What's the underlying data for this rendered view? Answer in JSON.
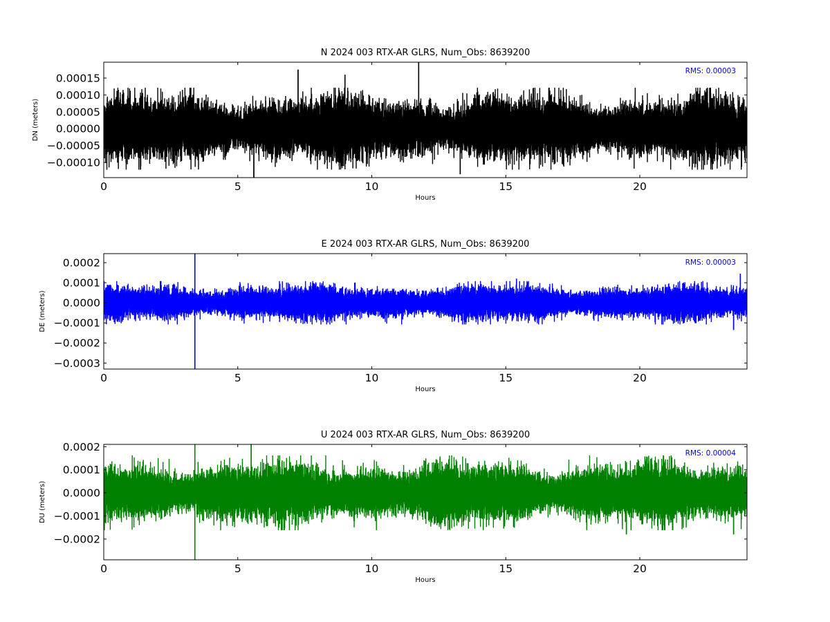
{
  "chart_data": [
    {
      "type": "line",
      "title": "N 2024 003 RTX-AR  GLRS, Num_Obs: 8639200",
      "xlabel": "Hours",
      "ylabel": "DN (meters)",
      "xlim": [
        0,
        24
      ],
      "ylim": [
        -0.000145,
        0.000197
      ],
      "x_ticks": [
        0,
        5,
        10,
        15,
        20
      ],
      "x_tick_labels": [
        "0",
        "5",
        "10",
        "15",
        "20"
      ],
      "y_ticks": [
        -0.0001,
        -5e-05,
        0,
        5e-05,
        0.0001,
        0.00015
      ],
      "y_tick_labels": [
        "−0.00010",
        "−0.00005",
        "0.00000",
        "0.00005",
        "0.00010",
        "0.00015"
      ],
      "rms_text": "RMS:  0.00003",
      "rms_color": "#0000ff",
      "grid": false,
      "series": [
        {
          "color": "#000000",
          "sample_every_hours": 0.0008,
          "typical_range": [
            -9e-05,
            9e-05
          ],
          "notable_spikes": [
            {
              "x": 7.25,
              "y": 0.000175
            },
            {
              "x": 11.75,
              "y": 0.000197
            },
            {
              "x": 5.6,
              "y": -0.000145
            },
            {
              "x": 9.0,
              "y": 0.00016
            },
            {
              "x": 13.3,
              "y": -0.000135
            }
          ]
        }
      ]
    },
    {
      "type": "line",
      "title": "E 2024 003 RTX-AR  GLRS, Num_Obs: 8639200",
      "xlabel": "Hours",
      "ylabel": "DE (meters)",
      "xlim": [
        0,
        24
      ],
      "ylim": [
        -0.00033,
        0.000245
      ],
      "x_ticks": [
        0,
        5,
        10,
        15,
        20
      ],
      "x_tick_labels": [
        "0",
        "5",
        "10",
        "15",
        "20"
      ],
      "y_ticks": [
        -0.0003,
        -0.0002,
        -0.0001,
        0,
        0.0001,
        0.0002
      ],
      "y_tick_labels": [
        "−0.0003",
        "−0.0002",
        "−0.0001",
        "0.0000",
        "0.0001",
        "0.0002"
      ],
      "rms_text": "RMS:  0.00003",
      "rms_color": "#0000ff",
      "grid": false,
      "series": [
        {
          "color": "#0000ff",
          "sample_every_hours": 0.0008,
          "typical_range": [
            -8e-05,
            8e-05
          ],
          "notable_spikes": [
            {
              "x": 3.4,
              "y": 0.000245
            },
            {
              "x": 3.4,
              "y": -0.00033
            },
            {
              "x": 23.75,
              "y": 0.000145
            },
            {
              "x": 23.5,
              "y": -0.000135
            },
            {
              "x": 15.4,
              "y": 0.00012
            }
          ]
        }
      ]
    },
    {
      "type": "line",
      "title": "U 2024 003 RTX-AR  GLRS, Num_Obs: 8639200",
      "xlabel": "Hours",
      "ylabel": "DU (meters)",
      "xlim": [
        0,
        24
      ],
      "ylim": [
        -0.00029,
        0.00021
      ],
      "x_ticks": [
        0,
        5,
        10,
        15,
        20
      ],
      "x_tick_labels": [
        "0",
        "5",
        "10",
        "15",
        "20"
      ],
      "y_ticks": [
        -0.0002,
        -0.0001,
        0,
        0.0001,
        0.0002
      ],
      "y_tick_labels": [
        "−0.0002",
        "−0.0001",
        "0.0000",
        "0.0001",
        "0.0002"
      ],
      "rms_text": "RMS:  0.00004",
      "rms_color": "#0000ff",
      "grid": false,
      "series": [
        {
          "color": "#008000",
          "sample_every_hours": 0.0008,
          "typical_range": [
            -0.00012,
            0.00012
          ],
          "notable_spikes": [
            {
              "x": 3.4,
              "y": 0.00021
            },
            {
              "x": 3.4,
              "y": -0.00029
            },
            {
              "x": 5.5,
              "y": 0.00021
            },
            {
              "x": 19.5,
              "y": -0.00018
            },
            {
              "x": 23.5,
              "y": -0.00018
            }
          ]
        }
      ]
    }
  ]
}
